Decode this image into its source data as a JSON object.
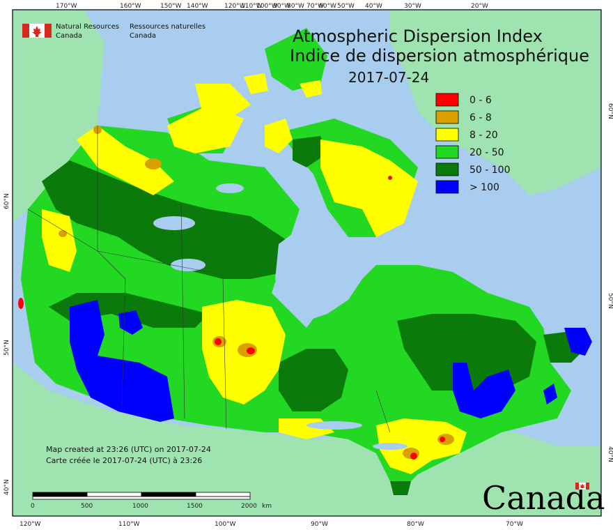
{
  "title": {
    "line1": "Atmospheric Dispersion Index",
    "line2": "Indice de dispersion atmosphérique",
    "date": "2017-07-24"
  },
  "agency": {
    "en_line1": "Natural Resources",
    "en_line2": "Canada",
    "fr_line1": "Ressources naturelles",
    "fr_line2": "Canada"
  },
  "legend": [
    {
      "label": "0 - 6",
      "color": "#ff0000"
    },
    {
      "label": "6 - 8",
      "color": "#d9a000"
    },
    {
      "label": "8 - 20",
      "color": "#ffff00"
    },
    {
      "label": "20 - 50",
      "color": "#22d822"
    },
    {
      "label": "50 - 100",
      "color": "#0a7a0a"
    },
    {
      "label": "> 100",
      "color": "#0000ff"
    }
  ],
  "credits": {
    "line1": "Map created at 23:26 (UTC) on 2017-07-24",
    "line2": "Carte créée le 2017-07-24 (UTC) à 23:26"
  },
  "scalebar": {
    "ticks": [
      "0",
      "500",
      "1000",
      "1500",
      "2000"
    ],
    "unit": "km"
  },
  "wordmark": "Canada",
  "top_longitudes": [
    "170°W",
    "160°W",
    "150°W",
    "140°W",
    "120°W",
    "110°W",
    "100°W",
    "90°W",
    "80°W",
    "70°W",
    "60°W",
    "50°W",
    "40°W",
    "30°W",
    "20°W"
  ],
  "bottom_longitudes": [
    "120°W",
    "110°W",
    "100°W",
    "90°W",
    "80°W",
    "70°W"
  ],
  "left_latitudes": [
    "60°N",
    "50°N",
    "40°N"
  ],
  "right_latitudes": [
    "60°N",
    "50°N",
    "40°N"
  ],
  "colors": {
    "water": "#a9cdee",
    "land_outside": "#9ee3b0",
    "frame": "#000000"
  }
}
